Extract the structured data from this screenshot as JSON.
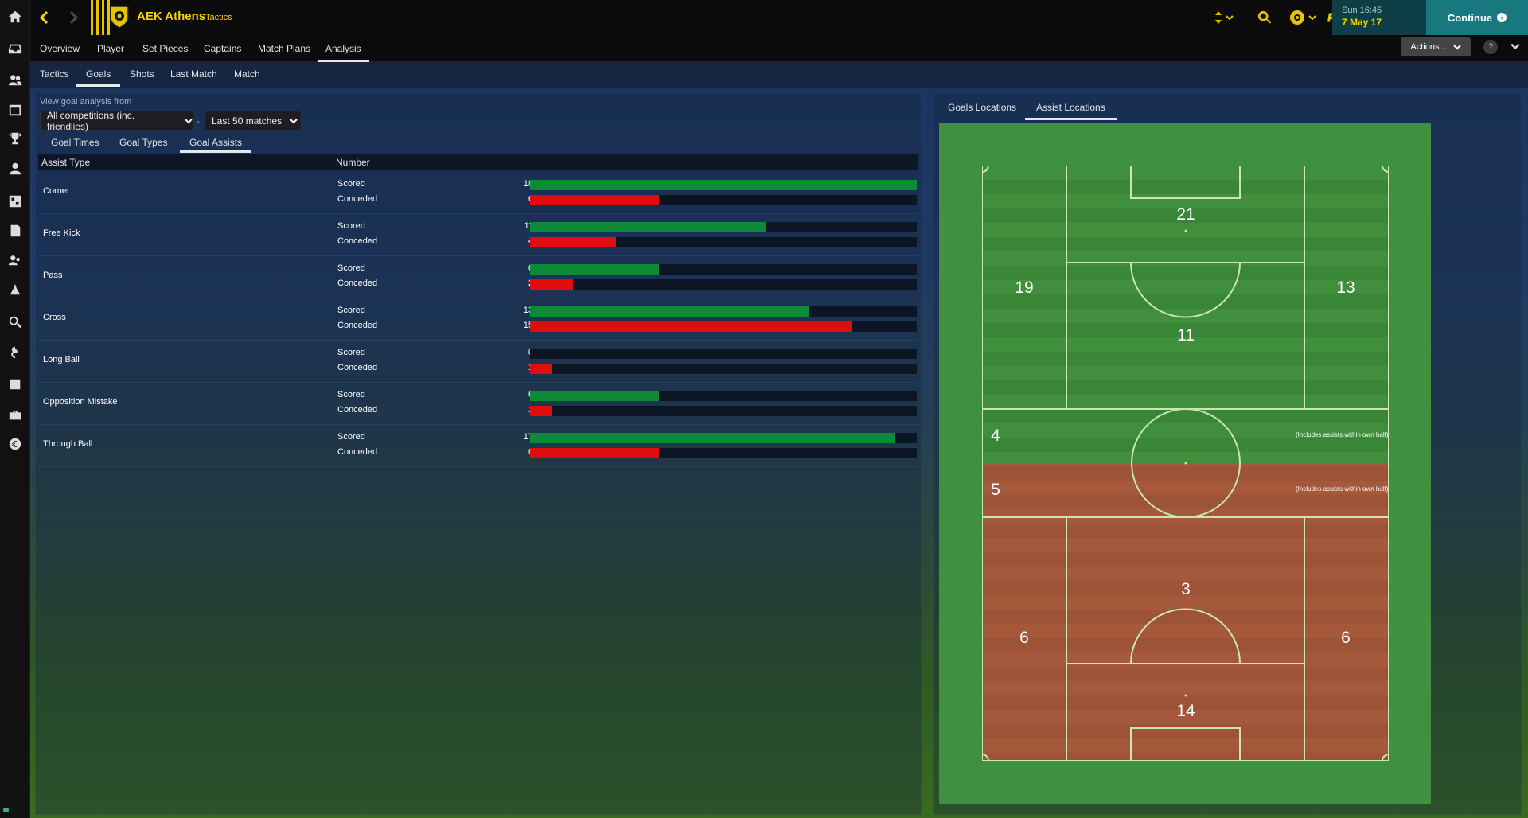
{
  "app": {
    "club_name": "AEK Athens",
    "section": "Tactics",
    "time": "Sun 16:45",
    "date": "7 May 17",
    "continue_label": "Continue",
    "actions_label": "Actions...",
    "accent": "#f5d400",
    "continue_color": "#18787f"
  },
  "sidebar_icons": [
    "home-icon",
    "inbox-icon",
    "squad-icon",
    "calendar-icon",
    "trophy-icon",
    "staff-icon",
    "tactics-icon",
    "report-icon",
    "scouting-icon",
    "training-icon",
    "search-icon",
    "transfers-icon",
    "club-vision-icon",
    "finances-briefcase-icon",
    "finances-euro-icon"
  ],
  "main_tabs": [
    "Overview",
    "Player",
    "Set Pieces",
    "Captains",
    "Match Plans",
    "Analysis"
  ],
  "sub_tabs": [
    "Tactics",
    "Goals",
    "Shots",
    "Last Match",
    "Match"
  ],
  "filters": {
    "label": "View goal analysis from",
    "competition": "All competitions (inc. friendlies)",
    "separator": "-",
    "range": "Last 50 matches"
  },
  "goal_tabs": [
    "Goal Times",
    "Goal Types",
    "Goal Assists"
  ],
  "table": {
    "col_type": "Assist Type",
    "col_number": "Number",
    "scored_label": "Scored",
    "conceded_label": "Conceded",
    "max": 18,
    "rows": [
      {
        "type": "Corner",
        "scored": "18",
        "conceded": "6"
      },
      {
        "type": "Free Kick",
        "scored": "11",
        "conceded": "4"
      },
      {
        "type": "Pass",
        "scored": "6",
        "conceded": "2"
      },
      {
        "type": "Cross",
        "scored": "13",
        "conceded": "15"
      },
      {
        "type": "Long Ball",
        "scored": "0",
        "conceded": "1"
      },
      {
        "type": "Opposition Mistake",
        "scored": "6",
        "conceded": "1"
      },
      {
        "type": "Through Ball",
        "scored": "17",
        "conceded": "6"
      }
    ],
    "scored_color": "#0d8a37",
    "conceded_color": "#e00d0d"
  },
  "location_tabs": [
    "Goals Locations",
    "Assist Locations"
  ],
  "pitch": {
    "attack_color": "#3f8f3c",
    "defence_color": "#a6583a",
    "note": "(Includes assists within own half)",
    "zones": {
      "opp_box_centre": "21",
      "opp_left_wing": "19",
      "opp_right_wing": "13",
      "opp_centre": "11",
      "attacking_half_mid": "4",
      "defensive_half_mid": "5",
      "own_centre": "3",
      "own_left_wing": "6",
      "own_right_wing": "6",
      "own_box_centre": "14"
    }
  }
}
